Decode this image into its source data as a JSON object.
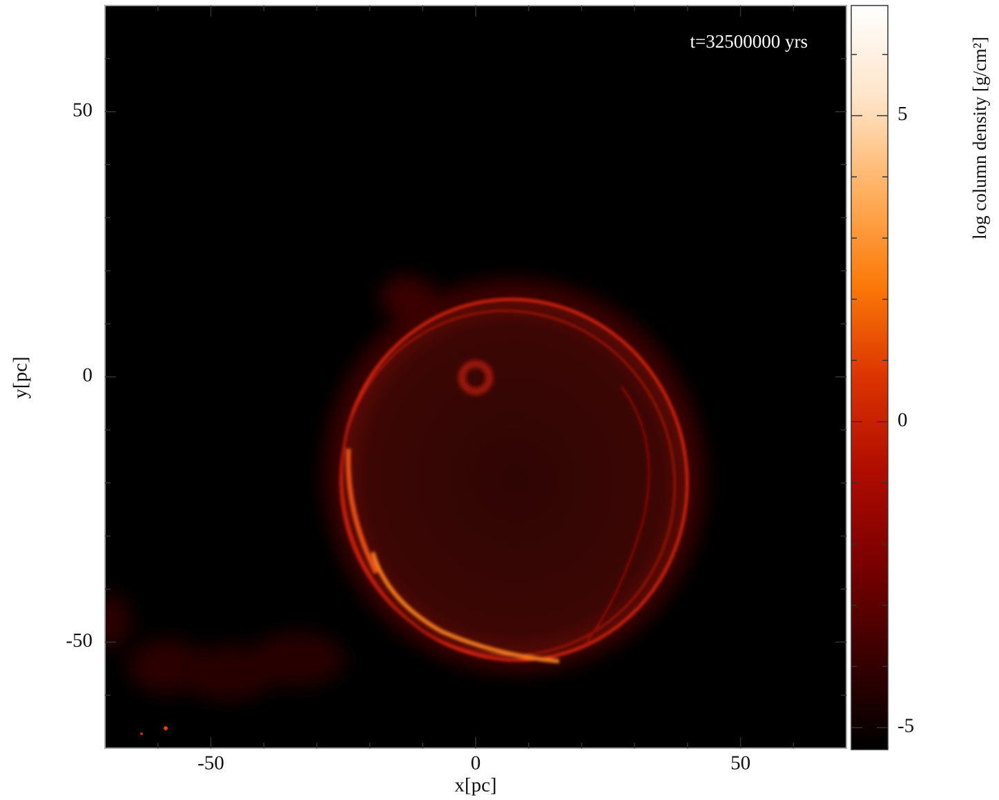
{
  "chart_data": {
    "type": "heatmap",
    "annotation": "t=32500000 yrs",
    "xlabel": "x[pc]",
    "ylabel": "y[pc]",
    "xlim": [
      -70,
      70
    ],
    "ylim": [
      -70,
      70
    ],
    "xticks": [
      -50,
      0,
      50
    ],
    "yticks": [
      -50,
      0,
      50
    ],
    "xminorticks": [
      -60,
      -40,
      -30,
      -20,
      -10,
      10,
      20,
      30,
      40,
      60
    ],
    "yminorticks": [
      -60,
      -40,
      -30,
      -20,
      -10,
      10,
      20,
      30,
      40,
      60
    ],
    "colorbar": {
      "label": "log column density [g/cm²]",
      "lim": [
        -5.36,
        6.8
      ],
      "ticks": [
        -5,
        0,
        5
      ],
      "minorticks": [
        -4,
        -3,
        -2,
        -1,
        1,
        2,
        3,
        4,
        6
      ],
      "colormap": [
        "#000000",
        "#3a0000",
        "#7a0000",
        "#b00c00",
        "#dc3400",
        "#fb7a08",
        "#ffb060",
        "#ffe4c8",
        "#ffffff"
      ]
    }
  }
}
